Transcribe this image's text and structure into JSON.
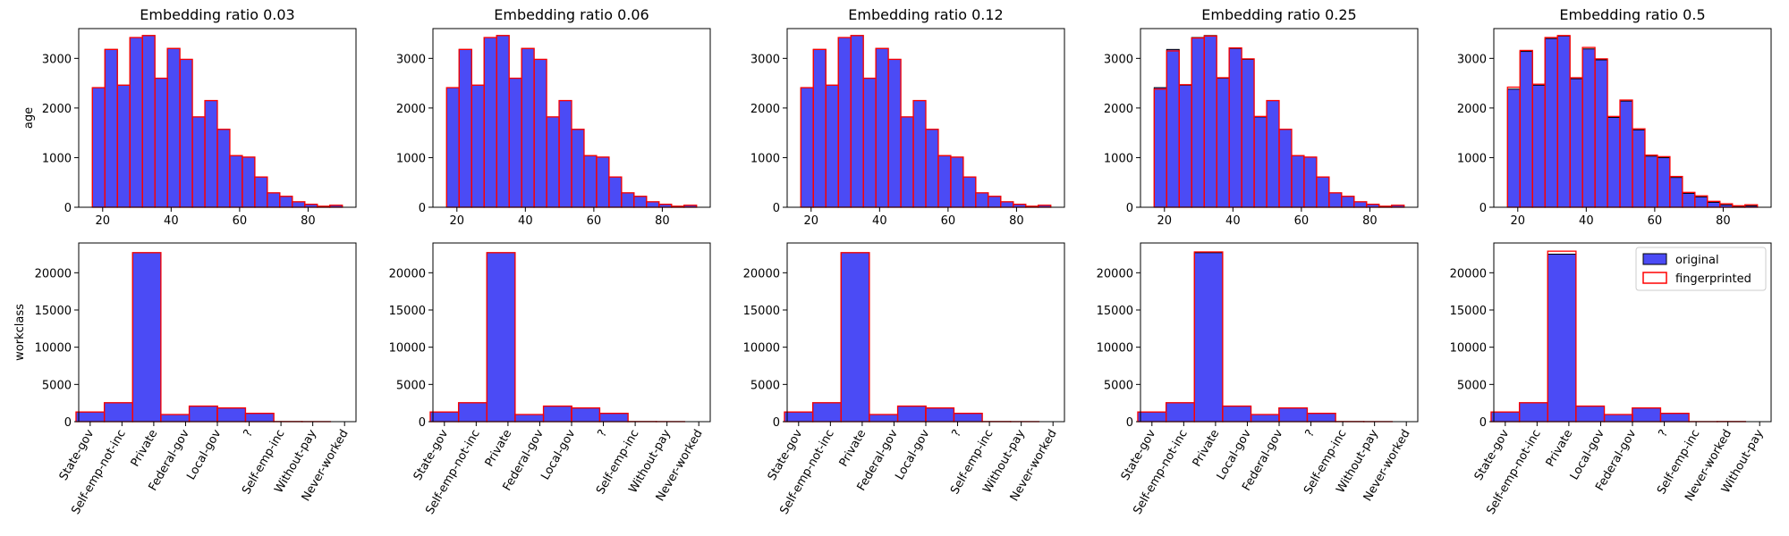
{
  "chart_data": {
    "type": "bar",
    "colors": {
      "original": "#4b4bf5",
      "original_edge": "#000000",
      "fingerprinted": "#ff0000"
    },
    "legend": {
      "items": [
        "original",
        "fingerprinted"
      ],
      "placement": "top-right of last lower panel"
    },
    "row_labels": [
      "age",
      "workclass"
    ],
    "panels": [
      {
        "title": "Embedding ratio 0.03",
        "age": {
          "xlim": [
            13,
            94
          ],
          "ylim": [
            0,
            3600
          ],
          "yticks": [
            0,
            1000,
            2000,
            3000
          ],
          "xticks": [
            20,
            40,
            60,
            80
          ],
          "bin_start": 17,
          "bin_width": 3.65,
          "original": [
            2410,
            3180,
            2460,
            3420,
            3460,
            2600,
            3200,
            2980,
            1820,
            2150,
            1570,
            1040,
            1010,
            610,
            290,
            220,
            110,
            60,
            20,
            40
          ],
          "fingerprinted": [
            2410,
            3180,
            2460,
            3420,
            3460,
            2600,
            3200,
            2980,
            1820,
            2150,
            1570,
            1040,
            1010,
            610,
            290,
            220,
            110,
            60,
            20,
            40
          ]
        },
        "workclass": {
          "ylim": [
            0,
            24000
          ],
          "yticks": [
            0,
            5000,
            10000,
            15000,
            20000
          ],
          "categories": [
            "State-gov",
            "Self-emp-not-inc",
            "Private",
            "Federal-gov",
            "Local-gov",
            "?",
            "Self-emp-inc",
            "Without-pay",
            "Never-worked"
          ],
          "tick_positions": [
            0,
            1,
            2,
            3,
            4,
            5,
            6,
            7,
            8
          ],
          "bar_positions": [
            0,
            0.89,
            1.78,
            2.67,
            3.56,
            4.44,
            5.33,
            6.22,
            7.11
          ],
          "original": [
            1300,
            2540,
            22700,
            960,
            2090,
            1840,
            1120,
            14,
            7
          ],
          "fingerprinted": [
            1300,
            2540,
            22700,
            960,
            2090,
            1840,
            1120,
            14,
            7
          ]
        }
      },
      {
        "title": "Embedding ratio 0.06",
        "age": {
          "xlim": [
            13,
            94
          ],
          "ylim": [
            0,
            3600
          ],
          "yticks": [
            0,
            1000,
            2000,
            3000
          ],
          "xticks": [
            20,
            40,
            60,
            80
          ],
          "bin_start": 17,
          "bin_width": 3.65,
          "original": [
            2410,
            3180,
            2460,
            3420,
            3460,
            2600,
            3200,
            2980,
            1820,
            2150,
            1570,
            1040,
            1010,
            610,
            290,
            220,
            110,
            60,
            20,
            40
          ],
          "fingerprinted": [
            2410,
            3180,
            2460,
            3420,
            3460,
            2600,
            3200,
            2980,
            1820,
            2150,
            1570,
            1040,
            1010,
            610,
            290,
            220,
            110,
            60,
            20,
            40
          ]
        },
        "workclass": {
          "ylim": [
            0,
            24000
          ],
          "yticks": [
            0,
            5000,
            10000,
            15000,
            20000
          ],
          "categories": [
            "State-gov",
            "Self-emp-not-inc",
            "Private",
            "Federal-gov",
            "Local-gov",
            "?",
            "Self-emp-inc",
            "Without-pay",
            "Never-worked"
          ],
          "tick_positions": [
            0,
            1,
            2,
            3,
            4,
            5,
            6,
            7,
            8
          ],
          "bar_positions": [
            0,
            0.89,
            1.78,
            2.67,
            3.56,
            4.44,
            5.33,
            6.22,
            7.11
          ],
          "original": [
            1300,
            2540,
            22700,
            960,
            2090,
            1840,
            1120,
            14,
            7
          ],
          "fingerprinted": [
            1300,
            2540,
            22700,
            960,
            2090,
            1840,
            1120,
            14,
            7
          ]
        }
      },
      {
        "title": "Embedding ratio 0.12",
        "age": {
          "xlim": [
            13,
            94
          ],
          "ylim": [
            0,
            3600
          ],
          "yticks": [
            0,
            1000,
            2000,
            3000
          ],
          "xticks": [
            20,
            40,
            60,
            80
          ],
          "bin_start": 17,
          "bin_width": 3.65,
          "original": [
            2410,
            3180,
            2460,
            3420,
            3460,
            2600,
            3200,
            2980,
            1820,
            2150,
            1570,
            1040,
            1010,
            610,
            290,
            220,
            110,
            60,
            20,
            40
          ],
          "fingerprinted": [
            2410,
            3180,
            2460,
            3420,
            3460,
            2600,
            3200,
            2980,
            1820,
            2150,
            1570,
            1040,
            1010,
            610,
            290,
            220,
            110,
            60,
            20,
            40
          ]
        },
        "workclass": {
          "ylim": [
            0,
            24000
          ],
          "yticks": [
            0,
            5000,
            10000,
            15000,
            20000
          ],
          "categories": [
            "State-gov",
            "Self-emp-not-inc",
            "Private",
            "Federal-gov",
            "Local-gov",
            "?",
            "Self-emp-inc",
            "Without-pay",
            "Never-worked"
          ],
          "tick_positions": [
            0,
            1,
            2,
            3,
            4,
            5,
            6,
            7,
            8
          ],
          "bar_positions": [
            0,
            0.89,
            1.78,
            2.67,
            3.56,
            4.44,
            5.33,
            6.22,
            7.11
          ],
          "original": [
            1300,
            2540,
            22700,
            960,
            2090,
            1840,
            1120,
            14,
            7
          ],
          "fingerprinted": [
            1300,
            2540,
            22700,
            960,
            2090,
            1840,
            1120,
            14,
            7
          ]
        }
      },
      {
        "title": "Embedding ratio 0.25",
        "age": {
          "xlim": [
            13,
            94
          ],
          "ylim": [
            0,
            3600
          ],
          "yticks": [
            0,
            1000,
            2000,
            3000
          ],
          "xticks": [
            20,
            40,
            60,
            80
          ],
          "bin_start": 17,
          "bin_width": 3.65,
          "original": [
            2410,
            3180,
            2460,
            3420,
            3460,
            2600,
            3200,
            2980,
            1820,
            2150,
            1570,
            1040,
            1010,
            610,
            290,
            220,
            110,
            60,
            20,
            40
          ],
          "fingerprinted": [
            2380,
            3150,
            2470,
            3410,
            3450,
            2610,
            3210,
            2990,
            1830,
            2150,
            1570,
            1040,
            1010,
            610,
            290,
            220,
            110,
            60,
            20,
            40
          ]
        },
        "workclass": {
          "ylim": [
            0,
            24000
          ],
          "yticks": [
            0,
            5000,
            10000,
            15000,
            20000
          ],
          "categories": [
            "State-gov",
            "Self-emp-not-inc",
            "Private",
            "Local-gov",
            "Federal-gov",
            "?",
            "Self-emp-inc",
            "Without-pay",
            "Never-worked"
          ],
          "tick_positions": [
            0,
            1,
            2,
            3,
            4,
            5,
            6,
            7,
            8
          ],
          "bar_positions": [
            0,
            0.89,
            1.78,
            2.67,
            3.56,
            4.44,
            5.33,
            6.22,
            7.11
          ],
          "original": [
            1300,
            2540,
            22700,
            2090,
            960,
            1840,
            1120,
            14,
            7
          ],
          "fingerprinted": [
            1300,
            2540,
            22800,
            2090,
            960,
            1840,
            1120,
            14,
            7
          ]
        }
      },
      {
        "title": "Embedding ratio 0.5",
        "age": {
          "xlim": [
            13,
            94
          ],
          "ylim": [
            0,
            3600
          ],
          "yticks": [
            0,
            1000,
            2000,
            3000
          ],
          "xticks": [
            20,
            40,
            60,
            80
          ],
          "bin_start": 17,
          "bin_width": 3.65,
          "original": [
            2380,
            3140,
            2460,
            3400,
            3450,
            2590,
            3190,
            2970,
            1810,
            2140,
            1560,
            1030,
            1000,
            600,
            280,
            210,
            100,
            50,
            20,
            30
          ],
          "fingerprinted": [
            2420,
            3160,
            2480,
            3420,
            3460,
            2610,
            3220,
            2990,
            1830,
            2160,
            1580,
            1050,
            1020,
            620,
            300,
            230,
            120,
            70,
            30,
            50
          ]
        },
        "workclass": {
          "ylim": [
            0,
            24000
          ],
          "yticks": [
            0,
            5000,
            10000,
            15000,
            20000
          ],
          "categories": [
            "State-gov",
            "Self-emp-not-inc",
            "Private",
            "Local-gov",
            "Federal-gov",
            "?",
            "Self-emp-inc",
            "Never-worked",
            "Without-pay"
          ],
          "tick_positions": [
            0,
            1,
            2,
            3,
            4,
            5,
            6,
            7,
            8
          ],
          "bar_positions": [
            0,
            0.89,
            1.78,
            2.67,
            3.56,
            4.44,
            5.33,
            6.22,
            7.11
          ],
          "original": [
            1300,
            2540,
            22500,
            2090,
            960,
            1840,
            1120,
            7,
            14
          ],
          "fingerprinted": [
            1300,
            2540,
            22900,
            2090,
            960,
            1840,
            1120,
            7,
            14
          ]
        }
      }
    ]
  }
}
